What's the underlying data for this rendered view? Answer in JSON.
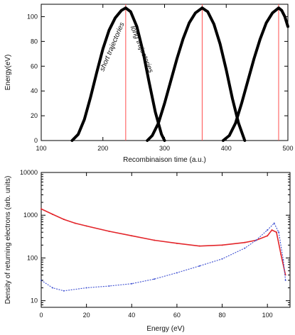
{
  "colors": {
    "trajectory": "#000000",
    "marker_line": "#ff4d4d",
    "series_red": "#e3262b",
    "series_blue": "#3d4fd1"
  },
  "chart_data": [
    {
      "type": "scatter",
      "title": "",
      "xlabel": "Recombinaison time (a.u.)",
      "ylabel": "Energy(eV)",
      "xlim": [
        100,
        500
      ],
      "ylim": [
        0,
        110
      ],
      "xticks": [
        "100",
        "200",
        "300",
        "400",
        "500"
      ],
      "yticks": [
        "0",
        "20",
        "40",
        "60",
        "80",
        "100"
      ],
      "annotations": [
        "short trajectories",
        "long trajectories"
      ],
      "vertical_lines_x": [
        237,
        361,
        485
      ],
      "grid": false,
      "series": [
        {
          "x": [
            150,
            160,
            170,
            180,
            190,
            200,
            210,
            220,
            230,
            237
          ],
          "y": [
            0,
            5,
            17,
            35,
            55,
            74,
            89,
            99,
            105,
            107
          ]
        },
        {
          "x": [
            237,
            245,
            255,
            265,
            275,
            285,
            295,
            300
          ],
          "y": [
            107,
            104,
            92,
            72,
            47,
            23,
            5,
            0
          ]
        },
        {
          "x": [
            272,
            280,
            290,
            300,
            310,
            320,
            330,
            340,
            350,
            361
          ],
          "y": [
            0,
            4,
            14,
            30,
            48,
            66,
            82,
            95,
            103,
            107
          ]
        },
        {
          "x": [
            361,
            370,
            380,
            390,
            400,
            410,
            420,
            430
          ],
          "y": [
            107,
            104,
            94,
            78,
            57,
            34,
            14,
            0
          ]
        },
        {
          "x": [
            395,
            405,
            415,
            425,
            435,
            445,
            455,
            465,
            475,
            485
          ],
          "y": [
            0,
            4,
            14,
            30,
            48,
            66,
            82,
            95,
            103,
            107
          ]
        },
        {
          "x": [
            485,
            490,
            495,
            500
          ],
          "y": [
            107,
            105,
            100,
            92
          ]
        }
      ]
    },
    {
      "type": "line",
      "title": "",
      "xlabel": "Energy (eV)",
      "ylabel": "Density of returning electrons (arb. units)",
      "xlim": [
        0,
        110
      ],
      "ylim": [
        7,
        10000
      ],
      "yscale": "log",
      "xticks": [
        "0",
        "20",
        "40",
        "60",
        "80",
        "100"
      ],
      "yticks": [
        "10",
        "100",
        "1000",
        "10000"
      ],
      "grid": false,
      "series": [
        {
          "color": "red",
          "x": [
            0,
            5,
            10,
            15,
            20,
            30,
            40,
            50,
            60,
            70,
            80,
            90,
            95,
            100,
            102,
            104,
            106,
            108
          ],
          "y": [
            1400,
            1050,
            800,
            650,
            560,
            420,
            330,
            260,
            220,
            190,
            200,
            230,
            260,
            330,
            450,
            400,
            120,
            40
          ]
        },
        {
          "color": "blue",
          "x": [
            0,
            5,
            10,
            20,
            30,
            40,
            50,
            60,
            70,
            80,
            90,
            95,
            100,
            103,
            105,
            107,
            108
          ],
          "y": [
            30,
            20,
            17,
            20,
            22,
            25,
            32,
            45,
            65,
            95,
            170,
            260,
            450,
            650,
            400,
            90,
            30
          ]
        }
      ]
    }
  ]
}
